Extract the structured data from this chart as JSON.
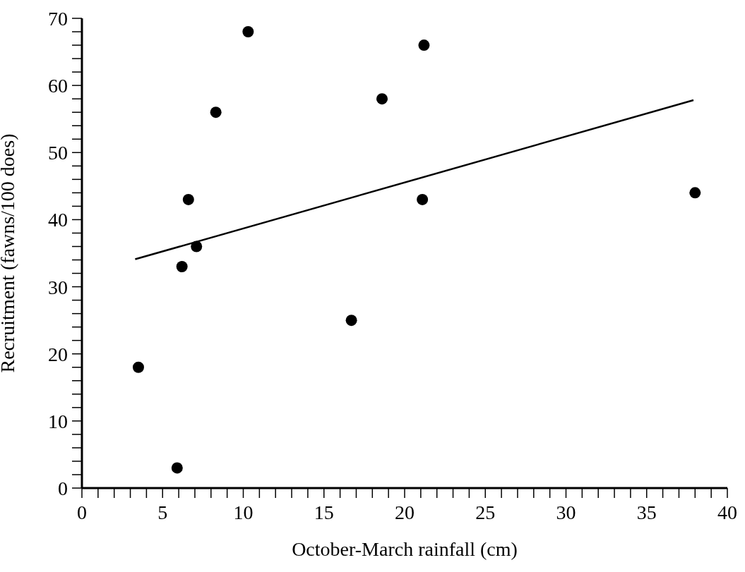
{
  "chart_data": {
    "type": "scatter",
    "xlabel": "October-March rainfall (cm)",
    "ylabel": "Recruitment (fawns/100 does)",
    "grid": false,
    "xlim": [
      0,
      40
    ],
    "ylim": [
      0,
      70
    ],
    "xticks": [
      0,
      {
        "value": 1,
        "label": null
      },
      {
        "value": 2,
        "label": null
      },
      {
        "value": 3,
        "label": null
      },
      {
        "value": 4,
        "label": null
      },
      5,
      {
        "value": 6,
        "label": null
      },
      {
        "value": 7,
        "label": null
      },
      {
        "value": 8,
        "label": null
      },
      {
        "value": 9,
        "label": null
      },
      10,
      {
        "value": 11,
        "label": null
      },
      {
        "value": 12,
        "label": null
      },
      {
        "value": 13,
        "label": null
      },
      {
        "value": 14,
        "label": null
      },
      15,
      {
        "value": 16,
        "label": null
      },
      {
        "value": 17,
        "label": null
      },
      {
        "value": 18,
        "label": null
      },
      {
        "value": 19,
        "label": null
      },
      20,
      {
        "value": 21,
        "label": null
      },
      {
        "value": 22,
        "label": null
      },
      {
        "value": 23,
        "label": null
      },
      {
        "value": 24,
        "label": null
      },
      25,
      {
        "value": 26,
        "label": null
      },
      {
        "value": 27,
        "label": null
      },
      {
        "value": 28,
        "label": null
      },
      {
        "value": 29,
        "label": null
      },
      30,
      {
        "value": 31,
        "label": null
      },
      {
        "value": 32,
        "label": null
      },
      {
        "value": 33,
        "label": null
      },
      {
        "value": 34,
        "label": null
      },
      35,
      {
        "value": 36,
        "label": null
      },
      {
        "value": 37,
        "label": null
      },
      {
        "value": 38,
        "label": null
      },
      {
        "value": 39,
        "label": null
      },
      40
    ],
    "yticks": [
      0,
      {
        "value": 2,
        "label": null
      },
      {
        "value": 4,
        "label": null
      },
      {
        "value": 6,
        "label": null
      },
      {
        "value": 8,
        "label": null
      },
      10,
      {
        "value": 12,
        "label": null
      },
      {
        "value": 14,
        "label": null
      },
      {
        "value": 16,
        "label": null
      },
      {
        "value": 18,
        "label": null
      },
      20,
      {
        "value": 22,
        "label": null
      },
      {
        "value": 24,
        "label": null
      },
      {
        "value": 26,
        "label": null
      },
      {
        "value": 28,
        "label": null
      },
      30,
      {
        "value": 32,
        "label": null
      },
      {
        "value": 34,
        "label": null
      },
      {
        "value": 36,
        "label": null
      },
      {
        "value": 38,
        "label": null
      },
      40,
      {
        "value": 42,
        "label": null
      },
      {
        "value": 44,
        "label": null
      },
      {
        "value": 46,
        "label": null
      },
      {
        "value": 48,
        "label": null
      },
      50,
      {
        "value": 52,
        "label": null
      },
      {
        "value": 54,
        "label": null
      },
      {
        "value": 56,
        "label": null
      },
      {
        "value": 58,
        "label": null
      },
      60,
      {
        "value": 62,
        "label": null
      },
      {
        "value": 64,
        "label": null
      },
      {
        "value": 66,
        "label": null
      },
      {
        "value": 68,
        "label": null
      },
      70
    ],
    "series": [
      {
        "type": "scatter",
        "color": "#000000",
        "marker": "circle",
        "x": [
          3.5,
          5.9,
          6.2,
          7.1,
          6.6,
          8.3,
          10.3,
          16.7,
          18.6,
          21.2,
          21.1,
          38.0
        ],
        "values": [
          18,
          3,
          33,
          36,
          43,
          56,
          68,
          25,
          58,
          66,
          43,
          44
        ]
      },
      {
        "type": "line",
        "color": "#000000",
        "marker": "none",
        "line_style": "solid",
        "x": [
          3.3,
          37.9
        ],
        "values": [
          34.1,
          57.8
        ]
      }
    ]
  }
}
